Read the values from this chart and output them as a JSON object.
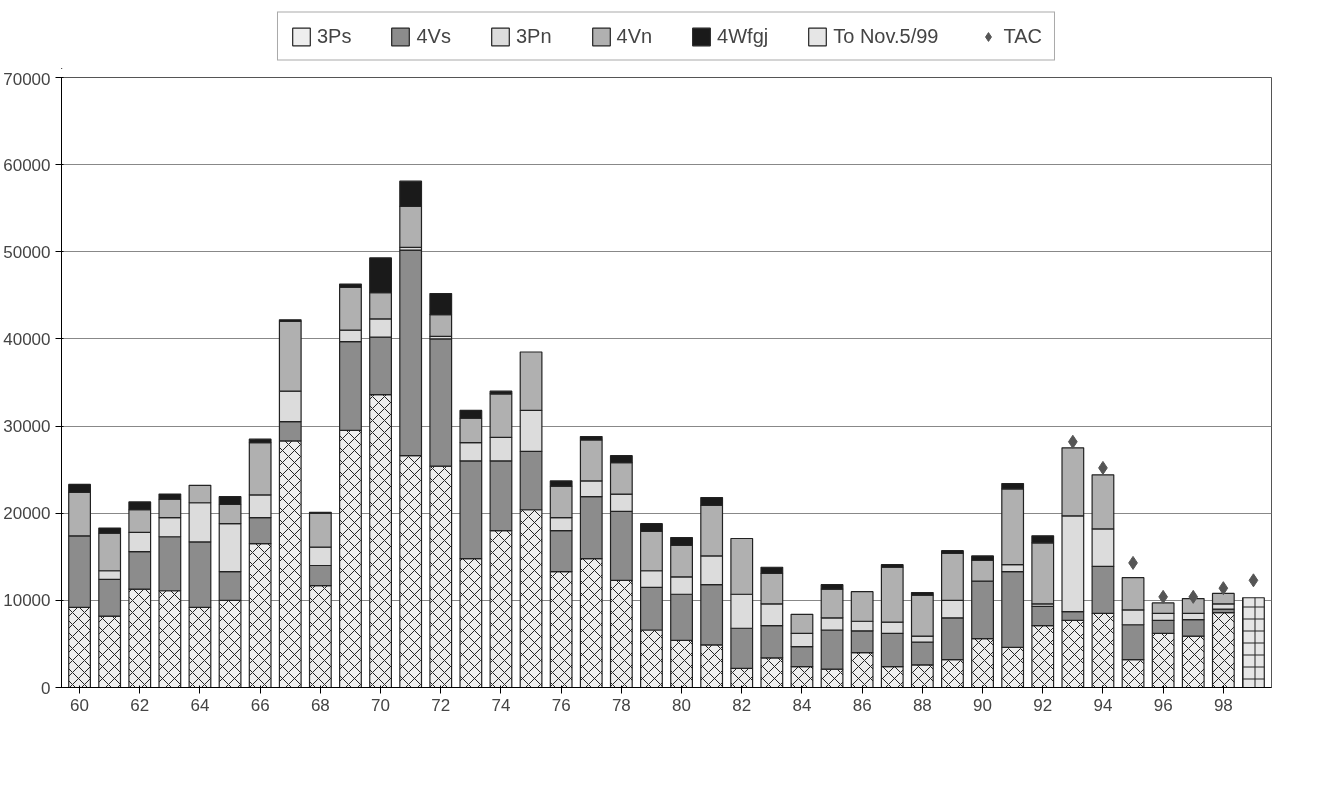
{
  "chart_data": {
    "type": "bar",
    "stacked": true,
    "x": [
      60,
      61,
      62,
      63,
      64,
      65,
      66,
      67,
      68,
      69,
      70,
      71,
      72,
      73,
      74,
      75,
      76,
      77,
      78,
      79,
      80,
      81,
      82,
      83,
      84,
      85,
      86,
      87,
      88,
      89,
      90,
      91,
      92,
      93,
      94,
      95,
      96,
      97,
      98,
      99
    ],
    "xlim": [
      59.4,
      99.6
    ],
    "xticks": [
      60,
      62,
      64,
      66,
      68,
      70,
      72,
      74,
      76,
      78,
      80,
      82,
      84,
      86,
      88,
      90,
      92,
      94,
      96,
      98
    ],
    "ylim": [
      0,
      70000
    ],
    "yticks": [
      0,
      10000,
      20000,
      30000,
      40000,
      50000,
      60000,
      70000
    ],
    "grid": "y",
    "legend": "top",
    "series": [
      {
        "name": "3Ps",
        "color": "#eeeeee",
        "values": [
          9200,
          8200,
          11300,
          11100,
          9200,
          10000,
          16500,
          28300,
          11700,
          29500,
          33600,
          26600,
          25400,
          14800,
          18000,
          20400,
          13300,
          14800,
          12300,
          6600,
          5400,
          4900,
          2200,
          3400,
          2400,
          2100,
          4000,
          2400,
          2600,
          3200,
          5600,
          4600,
          7100,
          7700,
          8500,
          3200,
          6200,
          5900,
          8600,
          null
        ]
      },
      {
        "name": "4Vs",
        "color": "#8c8c8c",
        "values": [
          8200,
          4200,
          4300,
          6200,
          7500,
          3300,
          3000,
          2200,
          2300,
          10200,
          6600,
          23600,
          14600,
          11200,
          8000,
          6700,
          4700,
          7100,
          7900,
          4900,
          5300,
          6900,
          4600,
          3700,
          2300,
          4500,
          2500,
          3800,
          2600,
          4800,
          6600,
          8700,
          2200,
          1000,
          5400,
          4000,
          1500,
          1900,
          400,
          null
        ]
      },
      {
        "name": "3Pn",
        "color": "#dcdcdc",
        "values": [
          null,
          1000,
          2200,
          2200,
          4500,
          5500,
          2600,
          3500,
          2100,
          1300,
          2100,
          300,
          300,
          2100,
          2700,
          4700,
          1500,
          1800,
          2000,
          1900,
          2000,
          3300,
          3900,
          2500,
          1500,
          1400,
          1100,
          1300,
          700,
          2000,
          null,
          800,
          300,
          11000,
          4300,
          1700,
          800,
          700,
          600,
          null
        ]
      },
      {
        "name": "4Vn",
        "color": "#b0b0b0",
        "values": [
          5000,
          4300,
          2600,
          2100,
          2000,
          2200,
          6000,
          8000,
          3900,
          4900,
          3000,
          4700,
          2500,
          2800,
          5000,
          6700,
          3600,
          4700,
          3600,
          4500,
          3600,
          5800,
          6400,
          3500,
          2200,
          3300,
          3400,
          6300,
          4700,
          5400,
          2400,
          8700,
          7000,
          7800,
          6200,
          3700,
          1200,
          1700,
          1200,
          null
        ]
      },
      {
        "name": "4Wfgj",
        "color": "#1a1a1a",
        "values": [
          900,
          600,
          900,
          600,
          null,
          900,
          400,
          200,
          100,
          400,
          4000,
          2900,
          2400,
          900,
          300,
          null,
          600,
          400,
          800,
          900,
          900,
          900,
          null,
          700,
          null,
          500,
          null,
          300,
          300,
          300,
          500,
          600,
          800,
          null,
          null,
          null,
          null,
          null,
          null,
          null
        ]
      },
      {
        "name": "To Nov.5/99",
        "color": "#e6e6e6",
        "values": [
          null,
          null,
          null,
          null,
          null,
          null,
          null,
          null,
          null,
          null,
          null,
          null,
          null,
          null,
          null,
          null,
          null,
          null,
          null,
          null,
          null,
          null,
          null,
          null,
          null,
          null,
          null,
          null,
          null,
          null,
          null,
          null,
          null,
          null,
          null,
          null,
          null,
          null,
          null,
          10300
        ]
      },
      {
        "name": "TAC",
        "type": "scatter",
        "marker": "diamond",
        "color": "#555555",
        "x": [
          93,
          94,
          95,
          96,
          97,
          98,
          99
        ],
        "values": [
          28200,
          25200,
          14300,
          10400,
          10400,
          11400,
          12300
        ]
      }
    ]
  }
}
